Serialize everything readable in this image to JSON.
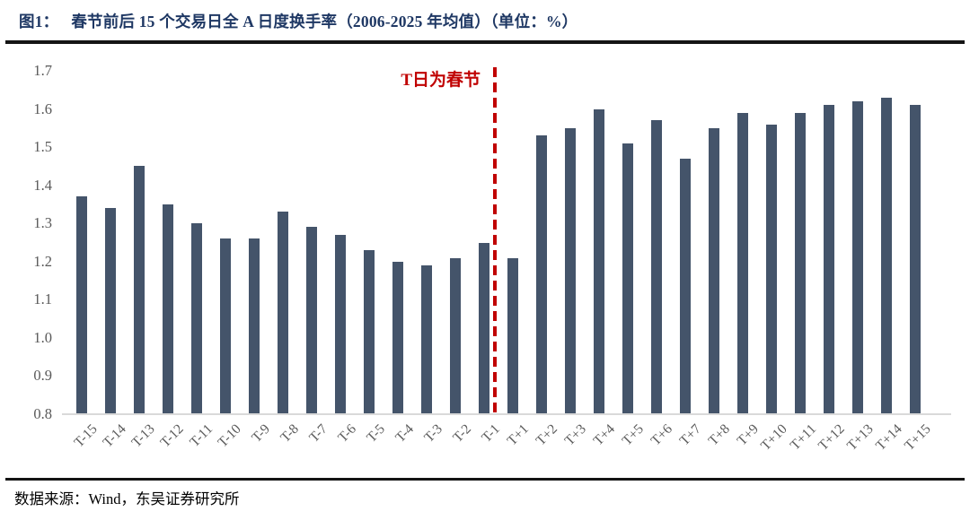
{
  "header": {
    "figure_label": "图1：",
    "title": "春节前后 15 个交易日全 A 日度换手率（2006-2025 年均值）（单位：%）"
  },
  "chart_data": {
    "type": "bar",
    "title": "春节前后 15 个交易日全 A 日度换手率（2006-2025 年均值）",
    "unit": "%",
    "xlabel": "",
    "ylabel": "",
    "categories": [
      "T-15",
      "T-14",
      "T-13",
      "T-12",
      "T-11",
      "T-10",
      "T-9",
      "T-8",
      "T-7",
      "T-6",
      "T-5",
      "T-4",
      "T-3",
      "T-2",
      "T-1",
      "T+1",
      "T+2",
      "T+3",
      "T+4",
      "T+5",
      "T+6",
      "T+7",
      "T+8",
      "T+9",
      "T+10",
      "T+11",
      "T+12",
      "T+13",
      "T+14",
      "T+15"
    ],
    "values": [
      1.37,
      1.34,
      1.45,
      1.35,
      1.3,
      1.26,
      1.26,
      1.33,
      1.29,
      1.27,
      1.23,
      1.2,
      1.19,
      1.21,
      1.25,
      1.21,
      1.53,
      1.55,
      1.6,
      1.51,
      1.57,
      1.47,
      1.55,
      1.59,
      1.56,
      1.59,
      1.61,
      1.62,
      1.63,
      1.61
    ],
    "ylim": [
      0.8,
      1.7
    ],
    "yticks": [
      "1.7",
      "1.6",
      "1.5",
      "1.4",
      "1.3",
      "1.2",
      "1.1",
      "1.0",
      "0.9",
      "0.8"
    ],
    "grid": false,
    "legend": "none",
    "bar_color": "#44546A",
    "axis_label_color": "#595959",
    "annotation": {
      "text": "T日为春节",
      "color": "#C00000",
      "divider_between": [
        "T-1",
        "T+1"
      ]
    }
  },
  "footer": {
    "source": "数据来源：Wind，东吴证券研究所"
  }
}
